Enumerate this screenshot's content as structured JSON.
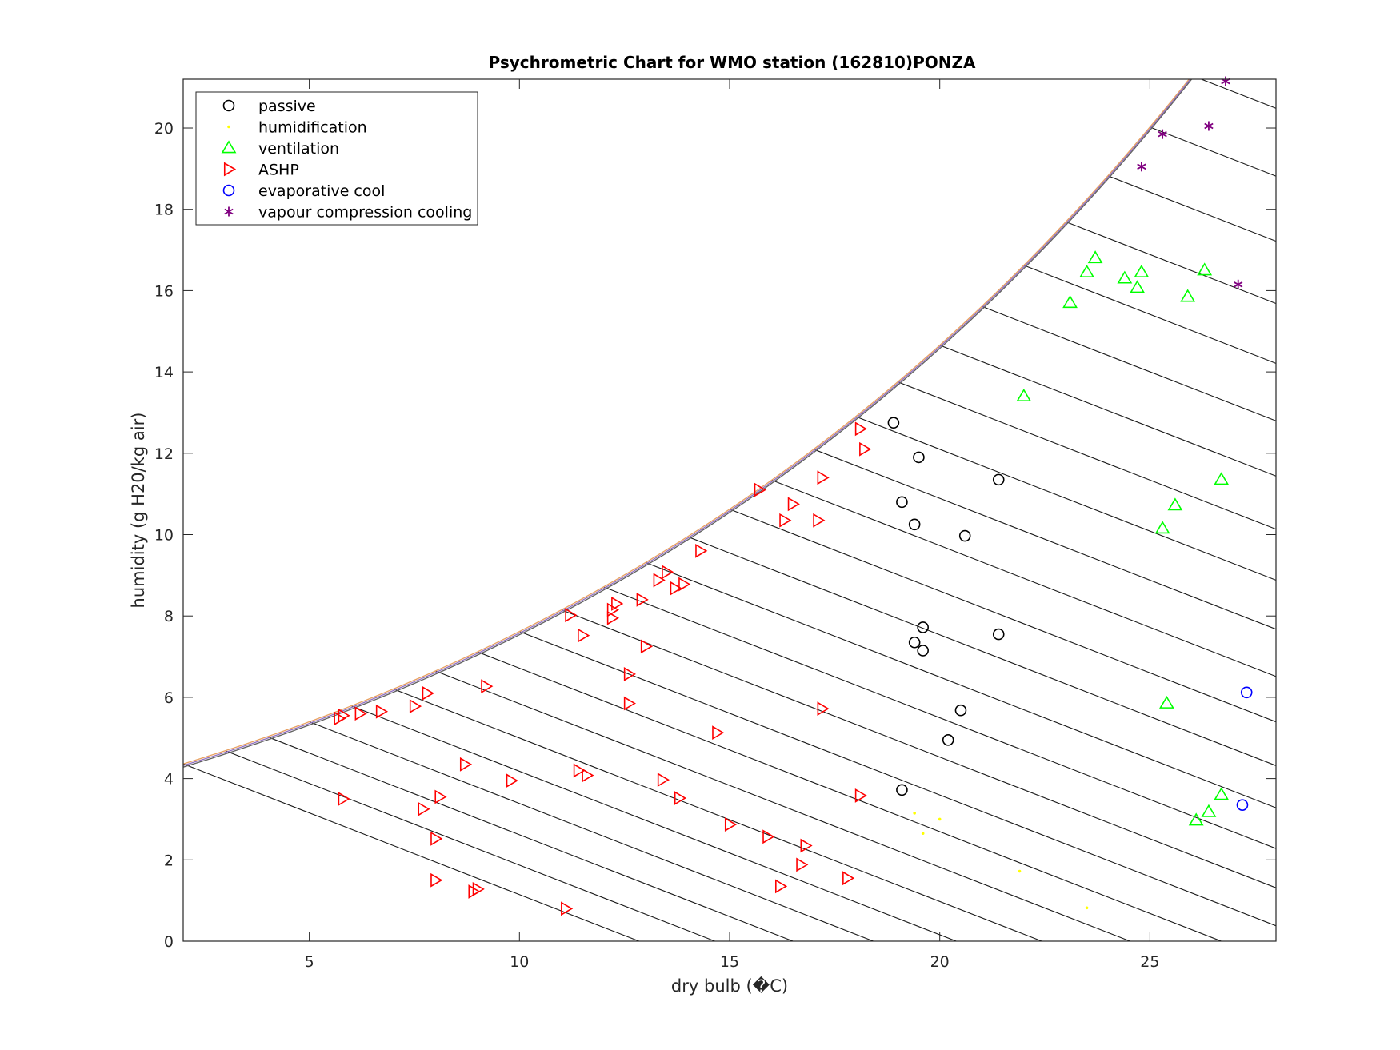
{
  "chart_data": {
    "type": "scatter",
    "title": "Psychrometric Chart for WMO station (162810)PONZA",
    "xlabel": "dry bulb (�C)",
    "ylabel": "humidity (g H20/kg air)",
    "xlim": [
      2,
      28
    ],
    "ylim": [
      0,
      21.2
    ],
    "xticks": [
      5,
      10,
      15,
      20,
      25
    ],
    "yticks": [
      0,
      2,
      4,
      6,
      8,
      10,
      12,
      14,
      16,
      18,
      20
    ],
    "grid": false,
    "legend_position": "top-left",
    "saturation_curve_colors": [
      "#e8a060",
      "#9070c0",
      "#606060"
    ],
    "series": [
      {
        "name": "passive",
        "marker": "circle",
        "color": "#000000",
        "points": [
          [
            18.9,
            12.75
          ],
          [
            19.5,
            11.9
          ],
          [
            21.4,
            11.35
          ],
          [
            19.1,
            10.8
          ],
          [
            19.4,
            10.25
          ],
          [
            20.6,
            9.97
          ],
          [
            19.6,
            7.72
          ],
          [
            21.4,
            7.55
          ],
          [
            19.4,
            7.35
          ],
          [
            19.6,
            7.15
          ],
          [
            20.5,
            5.68
          ],
          [
            20.2,
            4.95
          ],
          [
            19.1,
            3.72
          ]
        ]
      },
      {
        "name": "humidification",
        "marker": "dot",
        "color": "#ffff00",
        "points": [
          [
            19.4,
            3.15
          ],
          [
            20.0,
            3.0
          ],
          [
            19.6,
            2.65
          ],
          [
            21.9,
            1.72
          ],
          [
            23.5,
            0.82
          ]
        ]
      },
      {
        "name": "ventilation",
        "marker": "triangle-up",
        "color": "#00ff00",
        "points": [
          [
            23.7,
            16.8
          ],
          [
            23.5,
            16.45
          ],
          [
            24.8,
            16.45
          ],
          [
            26.3,
            16.5
          ],
          [
            24.4,
            16.3
          ],
          [
            24.7,
            16.07
          ],
          [
            25.9,
            15.85
          ],
          [
            23.1,
            15.7
          ],
          [
            22.0,
            13.4
          ],
          [
            26.7,
            11.35
          ],
          [
            25.6,
            10.72
          ],
          [
            25.3,
            10.15
          ],
          [
            25.4,
            5.85
          ],
          [
            26.7,
            3.6
          ],
          [
            26.4,
            3.18
          ],
          [
            26.1,
            2.97
          ]
        ]
      },
      {
        "name": "ASHP",
        "marker": "triangle-right",
        "color": "#ff0000",
        "points": [
          [
            18.1,
            12.6
          ],
          [
            18.2,
            12.1
          ],
          [
            17.2,
            11.4
          ],
          [
            15.7,
            11.1
          ],
          [
            16.5,
            10.75
          ],
          [
            16.3,
            10.35
          ],
          [
            17.1,
            10.35
          ],
          [
            14.3,
            9.6
          ],
          [
            13.5,
            9.08
          ],
          [
            13.3,
            8.88
          ],
          [
            13.9,
            8.78
          ],
          [
            13.7,
            8.68
          ],
          [
            12.9,
            8.4
          ],
          [
            12.3,
            8.3
          ],
          [
            12.2,
            8.15
          ],
          [
            12.2,
            7.95
          ],
          [
            11.2,
            8.02
          ],
          [
            11.5,
            7.52
          ],
          [
            13.0,
            7.25
          ],
          [
            12.6,
            6.57
          ],
          [
            9.2,
            6.27
          ],
          [
            7.8,
            6.1
          ],
          [
            12.6,
            5.85
          ],
          [
            7.5,
            5.78
          ],
          [
            6.7,
            5.65
          ],
          [
            6.2,
            5.6
          ],
          [
            5.8,
            5.55
          ],
          [
            5.7,
            5.48
          ],
          [
            17.2,
            5.72
          ],
          [
            14.7,
            5.13
          ],
          [
            8.7,
            4.35
          ],
          [
            11.4,
            4.2
          ],
          [
            11.6,
            4.08
          ],
          [
            9.8,
            3.95
          ],
          [
            13.4,
            3.97
          ],
          [
            18.1,
            3.58
          ],
          [
            5.8,
            3.5
          ],
          [
            8.1,
            3.55
          ],
          [
            13.8,
            3.52
          ],
          [
            7.7,
            3.25
          ],
          [
            15.0,
            2.87
          ],
          [
            15.9,
            2.57
          ],
          [
            8.0,
            2.52
          ],
          [
            16.8,
            2.35
          ],
          [
            16.7,
            1.88
          ],
          [
            17.8,
            1.55
          ],
          [
            8.0,
            1.5
          ],
          [
            16.2,
            1.35
          ],
          [
            9.0,
            1.28
          ],
          [
            8.9,
            1.22
          ],
          [
            11.1,
            0.8
          ]
        ]
      },
      {
        "name": "evaporative cool",
        "marker": "circle",
        "color": "#0000ff",
        "points": [
          [
            27.3,
            6.12
          ],
          [
            27.2,
            3.35
          ]
        ]
      },
      {
        "name": "vapour compression cooling",
        "marker": "asterisk",
        "color": "#800080",
        "points": [
          [
            26.8,
            21.15
          ],
          [
            26.4,
            20.05
          ],
          [
            25.3,
            19.85
          ],
          [
            24.8,
            19.05
          ],
          [
            27.1,
            16.15
          ]
        ]
      }
    ]
  }
}
